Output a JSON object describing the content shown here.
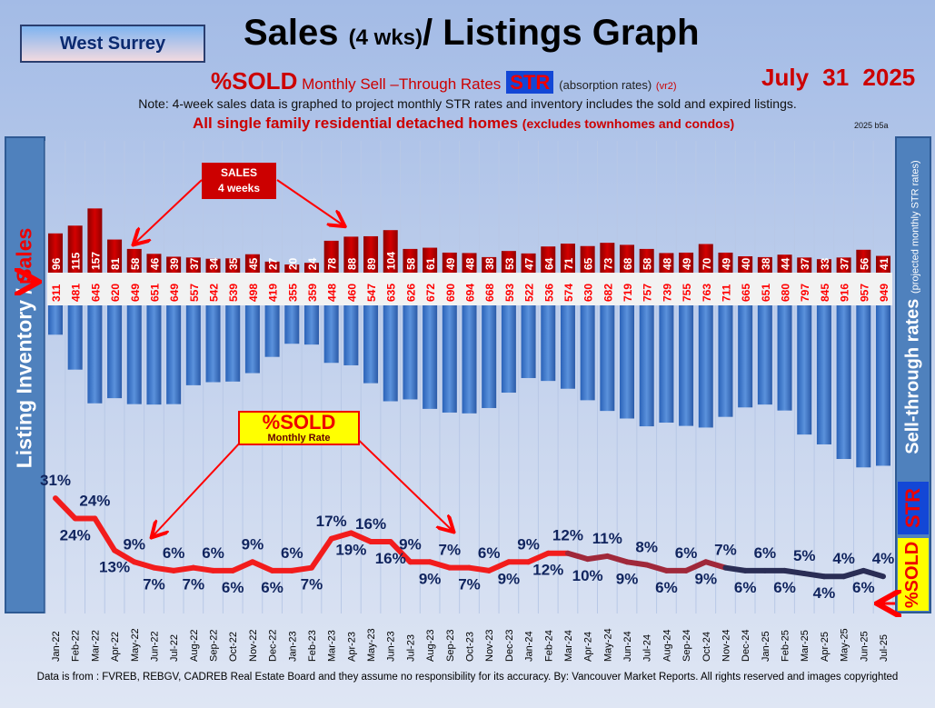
{
  "header": {
    "region": "West Surrey",
    "title": "Sales ",
    "title_small": "(4 wks)",
    "title_rest": "/ Listings Graph",
    "sub_big": "%SOLD",
    "sub_rest": " Monthly Sell –Through Rates",
    "str": "STR",
    "absorption": "(absorption rates)",
    "vr": "(vr2)",
    "date": "July  31  2025",
    "note": "Note: 4-week sales data is graphed to project monthly STR rates and inventory includes the sold and expired listings.",
    "scope": "All single family residential detached homes ",
    "scope_small": "(excludes townhomes and condos)",
    "version": "2025 b5a"
  },
  "left_axis": {
    "label_a": "Listing Inventory / ",
    "label_b": "Sales"
  },
  "right_axis": {
    "label": "Sell-through rates ",
    "label_small": "(projected monthly STR rates)",
    "str": "STR",
    "sold": "%SOLD"
  },
  "callouts": {
    "sales_a": "SALES",
    "sales_b": "4  weeks",
    "sold_a": "%SOLD",
    "sold_b": "Monthly Rate"
  },
  "footer": "Data is from : FVREB, REBGV, CADREB Real Estate Board and they assume no responsibility for its accuracy. By: Vancouver Market Reports. All rights reserved and  images copyrighted",
  "colors": {
    "sales": "#c00000",
    "listings": "#4f81bd",
    "line_high": "#ff1a1a",
    "line_low": "#1f2a55",
    "pct_label": "#10245e"
  },
  "chart_data": {
    "type": "bar+line",
    "categories": [
      "Jan-22",
      "Feb-22",
      "Mar-22",
      "Apr-22",
      "May-22",
      "Jun-22",
      "Jul-22",
      "Aug-22",
      "Sep-22",
      "Oct-22",
      "Nov-22",
      "Dec-22",
      "Jan-23",
      "Feb-23",
      "Mar-23",
      "Apr-23",
      "May-23",
      "Jun-23",
      "Jul-23",
      "Aug-23",
      "Sep-23",
      "Oct-23",
      "Nov-23",
      "Dec-23",
      "Jan-24",
      "Feb-24",
      "Mar-24",
      "Apr-24",
      "May-24",
      "Jun-24",
      "Jul-24",
      "Aug-24",
      "Sep-24",
      "Oct-24",
      "Nov-24",
      "Dec-24",
      "Jan-25",
      "Feb-25",
      "Mar-25",
      "Apr-25",
      "May-25",
      "Jun-25",
      "Jul-25"
    ],
    "series": [
      {
        "name": "Sales (4 weeks)",
        "values": [
          96,
          115,
          157,
          81,
          58,
          46,
          39,
          37,
          34,
          35,
          45,
          27,
          20,
          24,
          78,
          88,
          89,
          104,
          58,
          61,
          49,
          48,
          38,
          53,
          47,
          64,
          71,
          65,
          73,
          68,
          58,
          48,
          49,
          70,
          49,
          40,
          38,
          44,
          37,
          33,
          37,
          56,
          41
        ]
      },
      {
        "name": "Listing Inventory",
        "values": [
          311,
          481,
          645,
          620,
          649,
          651,
          649,
          557,
          542,
          539,
          498,
          419,
          355,
          359,
          448,
          460,
          547,
          635,
          626,
          672,
          690,
          694,
          668,
          593,
          522,
          536,
          574,
          630,
          682,
          719,
          757,
          739,
          755,
          763,
          711,
          665,
          651,
          680,
          797,
          845,
          916,
          957,
          949
        ]
      },
      {
        "name": "%SOLD",
        "values": [
          31,
          24,
          24,
          13,
          9,
          7,
          6,
          7,
          6,
          6,
          9,
          6,
          6,
          7,
          17,
          19,
          16,
          16,
          9,
          9,
          7,
          7,
          6,
          9,
          9,
          12,
          12,
          10,
          11,
          9,
          8,
          6,
          6,
          9,
          7,
          6,
          6,
          6,
          5,
          4,
          4,
          6,
          4
        ]
      }
    ]
  }
}
